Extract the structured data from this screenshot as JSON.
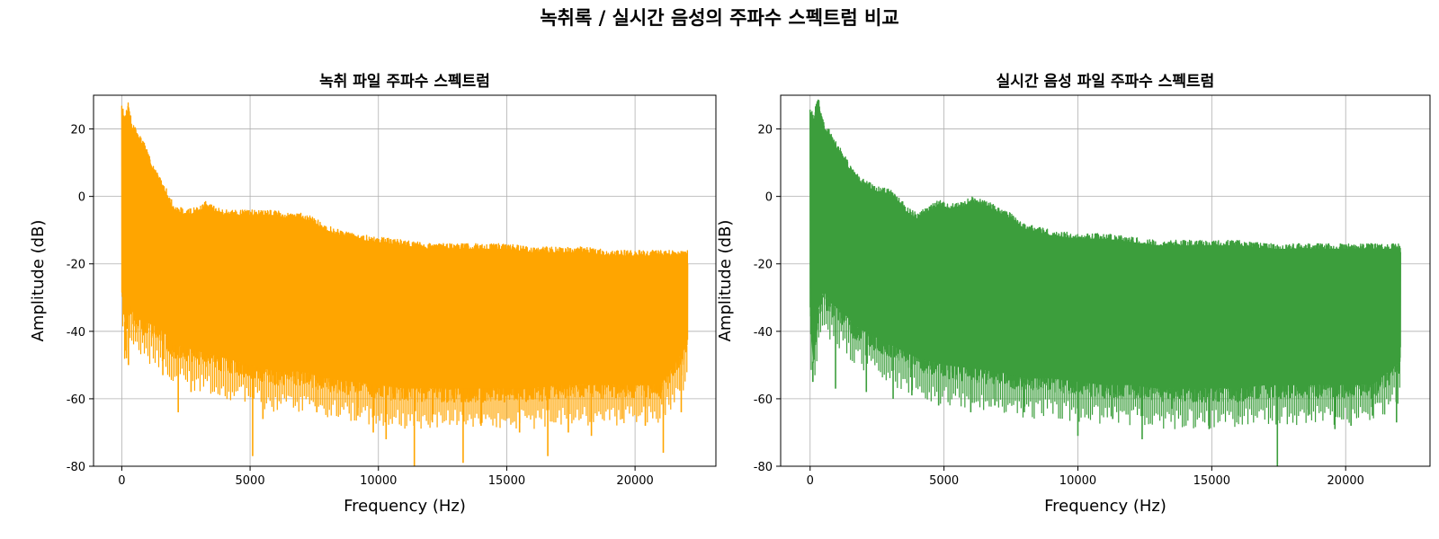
{
  "figure": {
    "suptitle": "녹취록 / 실시간 음성의 주파수 스펙트럼 비교"
  },
  "chart_data": [
    {
      "type": "line",
      "title": "녹취 파일 주파수 스펙트럼",
      "xlabel": "Frequency (Hz)",
      "ylabel": "Amplitude (dB)",
      "xlim": [
        -1100,
        23150
      ],
      "ylim": [
        -80,
        30
      ],
      "xticks": [
        0,
        5000,
        10000,
        15000,
        20000
      ],
      "yticks": [
        -80,
        -60,
        -40,
        -20,
        0,
        20
      ],
      "grid": true,
      "color": "#ffa500",
      "series": [
        {
          "upper_envelope": [
            [
              0,
              27
            ],
            [
              150,
              24
            ],
            [
              250,
              29
            ],
            [
              400,
              22
            ],
            [
              600,
              20
            ],
            [
              800,
              17
            ],
            [
              1000,
              14
            ],
            [
              1200,
              10
            ],
            [
              1500,
              6
            ],
            [
              1700,
              3
            ],
            [
              2000,
              -2
            ],
            [
              2500,
              -4
            ],
            [
              3000,
              -3
            ],
            [
              3300,
              -1
            ],
            [
              3600,
              -3
            ],
            [
              4000,
              -4
            ],
            [
              4500,
              -4
            ],
            [
              5000,
              -4
            ],
            [
              5500,
              -4
            ],
            [
              6000,
              -4
            ],
            [
              6500,
              -5
            ],
            [
              7000,
              -5
            ],
            [
              7500,
              -6
            ],
            [
              7800,
              -8
            ],
            [
              8500,
              -10
            ],
            [
              9000,
              -11
            ],
            [
              10000,
              -12
            ],
            [
              11000,
              -13
            ],
            [
              12000,
              -14
            ],
            [
              13000,
              -14
            ],
            [
              14000,
              -14
            ],
            [
              15000,
              -14
            ],
            [
              16000,
              -15
            ],
            [
              17000,
              -15
            ],
            [
              18000,
              -15
            ],
            [
              19000,
              -16
            ],
            [
              20000,
              -16
            ],
            [
              21000,
              -16
            ],
            [
              22050,
              -16
            ]
          ],
          "lower_envelope": [
            [
              0,
              -30
            ],
            [
              150,
              -48
            ],
            [
              300,
              -38
            ],
            [
              500,
              -42
            ],
            [
              800,
              -43
            ],
            [
              1200,
              -44
            ],
            [
              1600,
              -46
            ],
            [
              2000,
              -50
            ],
            [
              3000,
              -52
            ],
            [
              4000,
              -54
            ],
            [
              5000,
              -56
            ],
            [
              6000,
              -58
            ],
            [
              7000,
              -58
            ],
            [
              8000,
              -60
            ],
            [
              9000,
              -61
            ],
            [
              10000,
              -62
            ],
            [
              11000,
              -63
            ],
            [
              12000,
              -63
            ],
            [
              13000,
              -63
            ],
            [
              14000,
              -63
            ],
            [
              15000,
              -63
            ],
            [
              16000,
              -63
            ],
            [
              17000,
              -62
            ],
            [
              18000,
              -62
            ],
            [
              19000,
              -62
            ],
            [
              20000,
              -62
            ],
            [
              21000,
              -62
            ],
            [
              22050,
              -50
            ]
          ],
          "dips": [
            [
              180,
              -48
            ],
            [
              260,
              -50
            ],
            [
              1600,
              -53
            ],
            [
              2200,
              -64
            ],
            [
              2700,
              -58
            ],
            [
              5100,
              -77
            ],
            [
              5500,
              -66
            ],
            [
              7600,
              -64
            ],
            [
              9200,
              -65
            ],
            [
              9800,
              -70
            ],
            [
              10300,
              -72
            ],
            [
              11400,
              -80
            ],
            [
              12100,
              -67
            ],
            [
              13300,
              -79
            ],
            [
              14000,
              -68
            ],
            [
              15500,
              -70
            ],
            [
              16600,
              -77
            ],
            [
              17400,
              -70
            ],
            [
              18300,
              -71
            ],
            [
              19500,
              -66
            ],
            [
              20400,
              -68
            ],
            [
              21100,
              -76
            ],
            [
              21800,
              -64
            ]
          ]
        }
      ]
    },
    {
      "type": "line",
      "title": "실시간 음성 파일 주파수 스펙트럼",
      "xlabel": "Frequency (Hz)",
      "ylabel": "Amplitude (dB)",
      "xlim": [
        -1100,
        23150
      ],
      "ylim": [
        -80,
        30
      ],
      "xticks": [
        0,
        5000,
        10000,
        15000,
        20000
      ],
      "yticks": [
        -80,
        -60,
        -40,
        -20,
        0,
        20
      ],
      "grid": true,
      "color": "#3c9e3c",
      "series": [
        {
          "upper_envelope": [
            [
              0,
              27
            ],
            [
              150,
              24
            ],
            [
              250,
              30
            ],
            [
              350,
              28
            ],
            [
              500,
              22
            ],
            [
              700,
              20
            ],
            [
              1000,
              16
            ],
            [
              1300,
              12
            ],
            [
              1600,
              8
            ],
            [
              2000,
              5
            ],
            [
              2500,
              3
            ],
            [
              3000,
              2
            ],
            [
              3300,
              0
            ],
            [
              3600,
              -3
            ],
            [
              4000,
              -5
            ],
            [
              4400,
              -3
            ],
            [
              4800,
              -1
            ],
            [
              5200,
              -2
            ],
            [
              5600,
              -2
            ],
            [
              6000,
              0
            ],
            [
              6500,
              -1
            ],
            [
              7000,
              -3
            ],
            [
              7500,
              -5
            ],
            [
              8000,
              -8
            ],
            [
              9000,
              -10
            ],
            [
              10000,
              -11
            ],
            [
              11000,
              -11
            ],
            [
              12000,
              -12
            ],
            [
              13000,
              -13
            ],
            [
              14000,
              -13
            ],
            [
              15000,
              -13
            ],
            [
              16000,
              -13
            ],
            [
              17000,
              -14
            ],
            [
              18000,
              -14
            ],
            [
              19000,
              -14
            ],
            [
              20000,
              -14
            ],
            [
              21000,
              -14
            ],
            [
              22050,
              -14
            ]
          ],
          "lower_envelope": [
            [
              0,
              -40
            ],
            [
              100,
              -55
            ],
            [
              300,
              -40
            ],
            [
              500,
              -34
            ],
            [
              800,
              -38
            ],
            [
              1200,
              -40
            ],
            [
              1600,
              -44
            ],
            [
              2000,
              -46
            ],
            [
              3000,
              -50
            ],
            [
              4000,
              -54
            ],
            [
              5000,
              -56
            ],
            [
              6000,
              -57
            ],
            [
              7000,
              -58
            ],
            [
              8000,
              -60
            ],
            [
              9000,
              -60
            ],
            [
              10000,
              -61
            ],
            [
              11000,
              -62
            ],
            [
              12000,
              -62
            ],
            [
              13000,
              -63
            ],
            [
              14000,
              -63
            ],
            [
              15000,
              -63
            ],
            [
              16000,
              -63
            ],
            [
              17000,
              -62
            ],
            [
              18000,
              -62
            ],
            [
              19000,
              -62
            ],
            [
              20000,
              -62
            ],
            [
              21000,
              -62
            ],
            [
              22050,
              -55
            ]
          ],
          "dips": [
            [
              100,
              -55
            ],
            [
              950,
              -57
            ],
            [
              2100,
              -58
            ],
            [
              3100,
              -60
            ],
            [
              3800,
              -59
            ],
            [
              4800,
              -62
            ],
            [
              6000,
              -64
            ],
            [
              6900,
              -62
            ],
            [
              8000,
              -64
            ],
            [
              10000,
              -71
            ],
            [
              11300,
              -66
            ],
            [
              12400,
              -72
            ],
            [
              13500,
              -63
            ],
            [
              14900,
              -69
            ],
            [
              16000,
              -65
            ],
            [
              17450,
              -80
            ],
            [
              18600,
              -65
            ],
            [
              19600,
              -69
            ],
            [
              20200,
              -68
            ],
            [
              21000,
              -65
            ],
            [
              21900,
              -67
            ]
          ]
        }
      ]
    }
  ]
}
